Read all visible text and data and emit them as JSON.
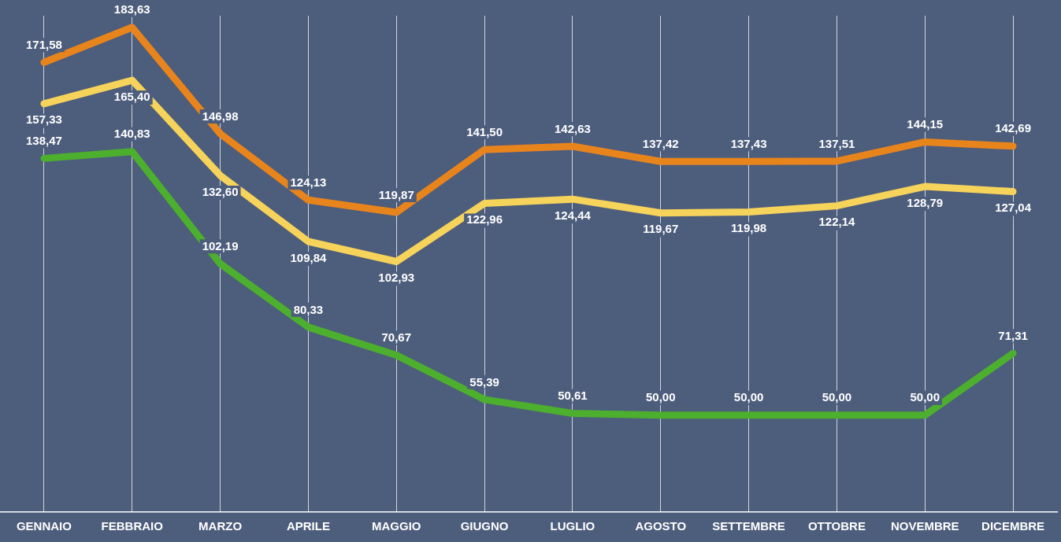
{
  "chart_data": {
    "type": "line",
    "categories": [
      "GENNAIO",
      "FEBBRAIO",
      "MARZO",
      "APRILE",
      "MAGGIO",
      "GIUGNO",
      "LUGLIO",
      "AGOSTO",
      "SETTEMBRE",
      "OTTOBRE",
      "NOVEMBRE",
      "DICEMBRE"
    ],
    "series": [
      {
        "color": "#e8841c",
        "values": [
          171.58,
          183.63,
          146.98,
          124.13,
          119.87,
          141.5,
          142.63,
          137.42,
          137.43,
          137.51,
          144.15,
          142.69
        ],
        "value_labels": [
          "171,58",
          "183,63",
          "146,98",
          "124,13",
          "119,87",
          "141,50",
          "142,63",
          "137,42",
          "137,43",
          "137,51",
          "144,15",
          "142,69"
        ]
      },
      {
        "color": "#f6d35a",
        "values": [
          157.33,
          165.4,
          132.6,
          109.84,
          102.93,
          122.96,
          124.44,
          119.67,
          119.98,
          122.14,
          128.79,
          127.04
        ],
        "value_labels": [
          "157,33",
          "165,40",
          "132,60",
          "109,84",
          "102,93",
          "122,96",
          "124,44",
          "119,67",
          "119,98",
          "122,14",
          "128,79",
          "127,04"
        ]
      },
      {
        "color": "#4caf2e",
        "values": [
          138.47,
          140.83,
          102.19,
          80.33,
          70.67,
          55.39,
          50.61,
          50.0,
          50.0,
          50.0,
          50.0,
          71.31
        ],
        "value_labels": [
          "138,47",
          "140,83",
          "102,19",
          "80,33",
          "70,67",
          "55,39",
          "50,61",
          "50,00",
          "50,00",
          "50,00",
          "50,00",
          "71,31"
        ]
      }
    ],
    "grid": "x",
    "marker": "none",
    "line_style": "solid",
    "legend": false
  }
}
